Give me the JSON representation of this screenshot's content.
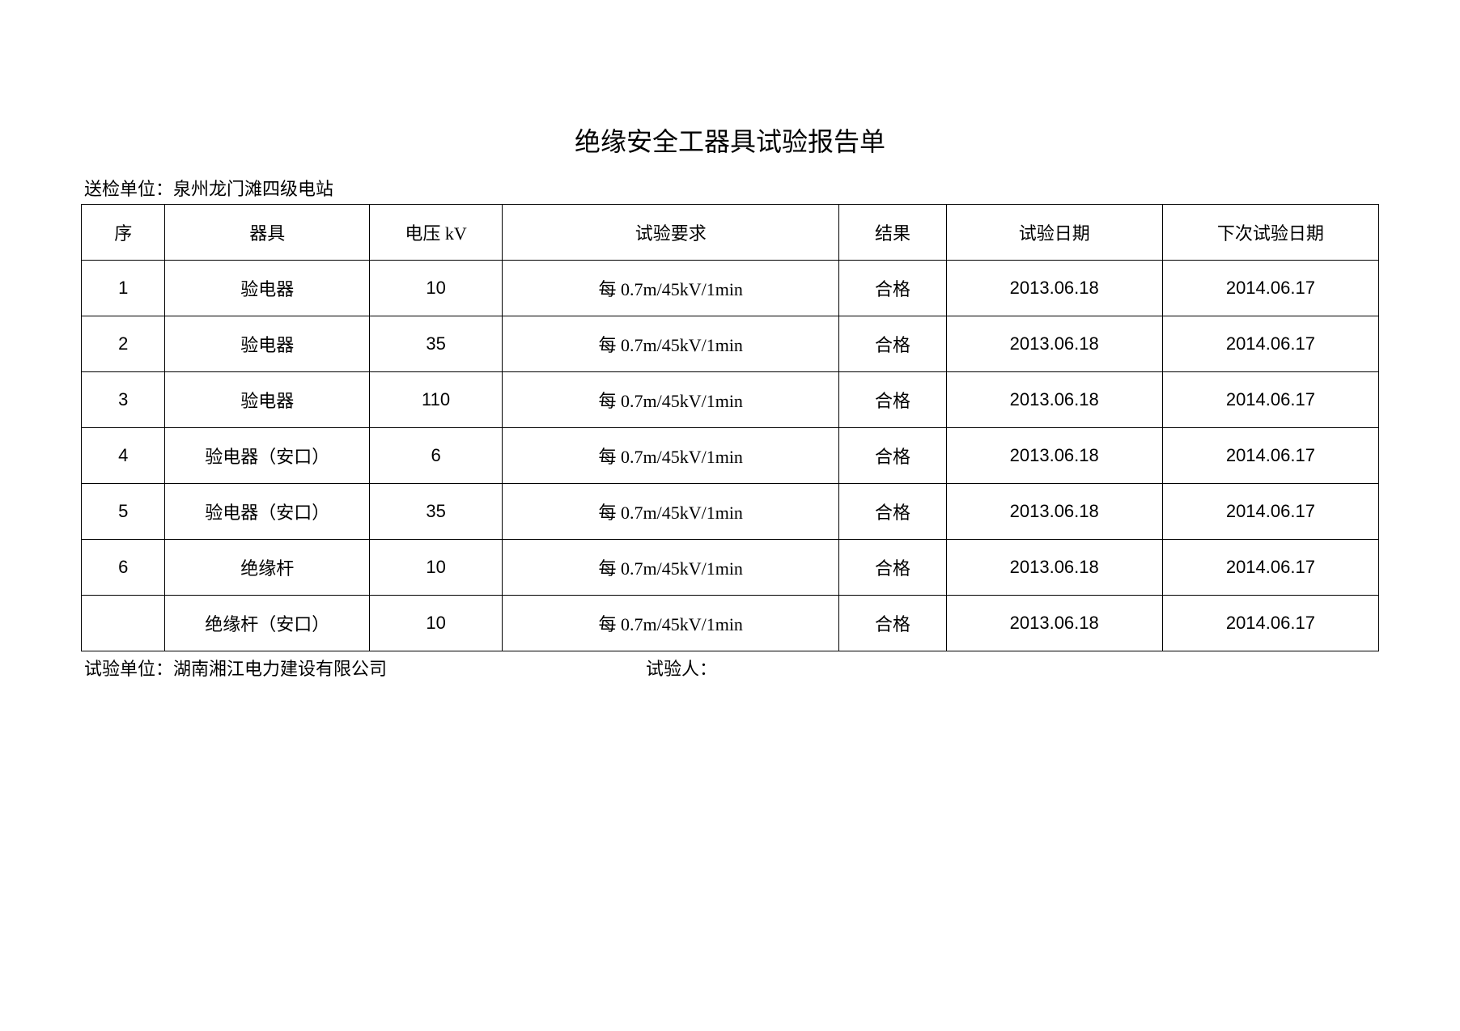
{
  "title": "绝缘安全工器具试验报告单",
  "submitting_unit_label": "送检单位：",
  "submitting_unit_value": "泉州龙门滩四级电站",
  "columns": {
    "seq": "序",
    "tool": "器具",
    "voltage": "电压 kV",
    "requirement": "试验要求",
    "result": "结果",
    "test_date": "试验日期",
    "next_date": "下次试验日期"
  },
  "rows": [
    {
      "seq": "1",
      "tool": "验电器",
      "voltage": "10",
      "requirement": "每 0.7m/45kV/1min",
      "result": "合格",
      "test_date": "2013.06.18",
      "next_date": "2014.06.17"
    },
    {
      "seq": "2",
      "tool": "验电器",
      "voltage": "35",
      "requirement": "每 0.7m/45kV/1min",
      "result": "合格",
      "test_date": "2013.06.18",
      "next_date": "2014.06.17"
    },
    {
      "seq": "3",
      "tool": "验电器",
      "voltage": "110",
      "requirement": "每 0.7m/45kV/1min",
      "result": "合格",
      "test_date": "2013.06.18",
      "next_date": "2014.06.17"
    },
    {
      "seq": "4",
      "tool": "验电器（安口）",
      "voltage": "6",
      "requirement": "每 0.7m/45kV/1min",
      "result": "合格",
      "test_date": "2013.06.18",
      "next_date": "2014.06.17"
    },
    {
      "seq": "5",
      "tool": "验电器（安口）",
      "voltage": "35",
      "requirement": "每 0.7m/45kV/1min",
      "result": "合格",
      "test_date": "2013.06.18",
      "next_date": "2014.06.17"
    },
    {
      "seq": "6",
      "tool": "绝缘杆",
      "voltage": "10",
      "requirement": "每 0.7m/45kV/1min",
      "result": "合格",
      "test_date": "2013.06.18",
      "next_date": "2014.06.17"
    },
    {
      "seq": "",
      "tool": "绝缘杆（安口）",
      "voltage": "10",
      "requirement": "每 0.7m/45kV/1min",
      "result": "合格",
      "test_date": "2013.06.18",
      "next_date": "2014.06.17"
    }
  ],
  "footer": {
    "test_unit_label": "试验单位：",
    "test_unit_value": "湖南湘江电力建设有限公司",
    "tester_label": "试验人：",
    "tester_value": ""
  }
}
